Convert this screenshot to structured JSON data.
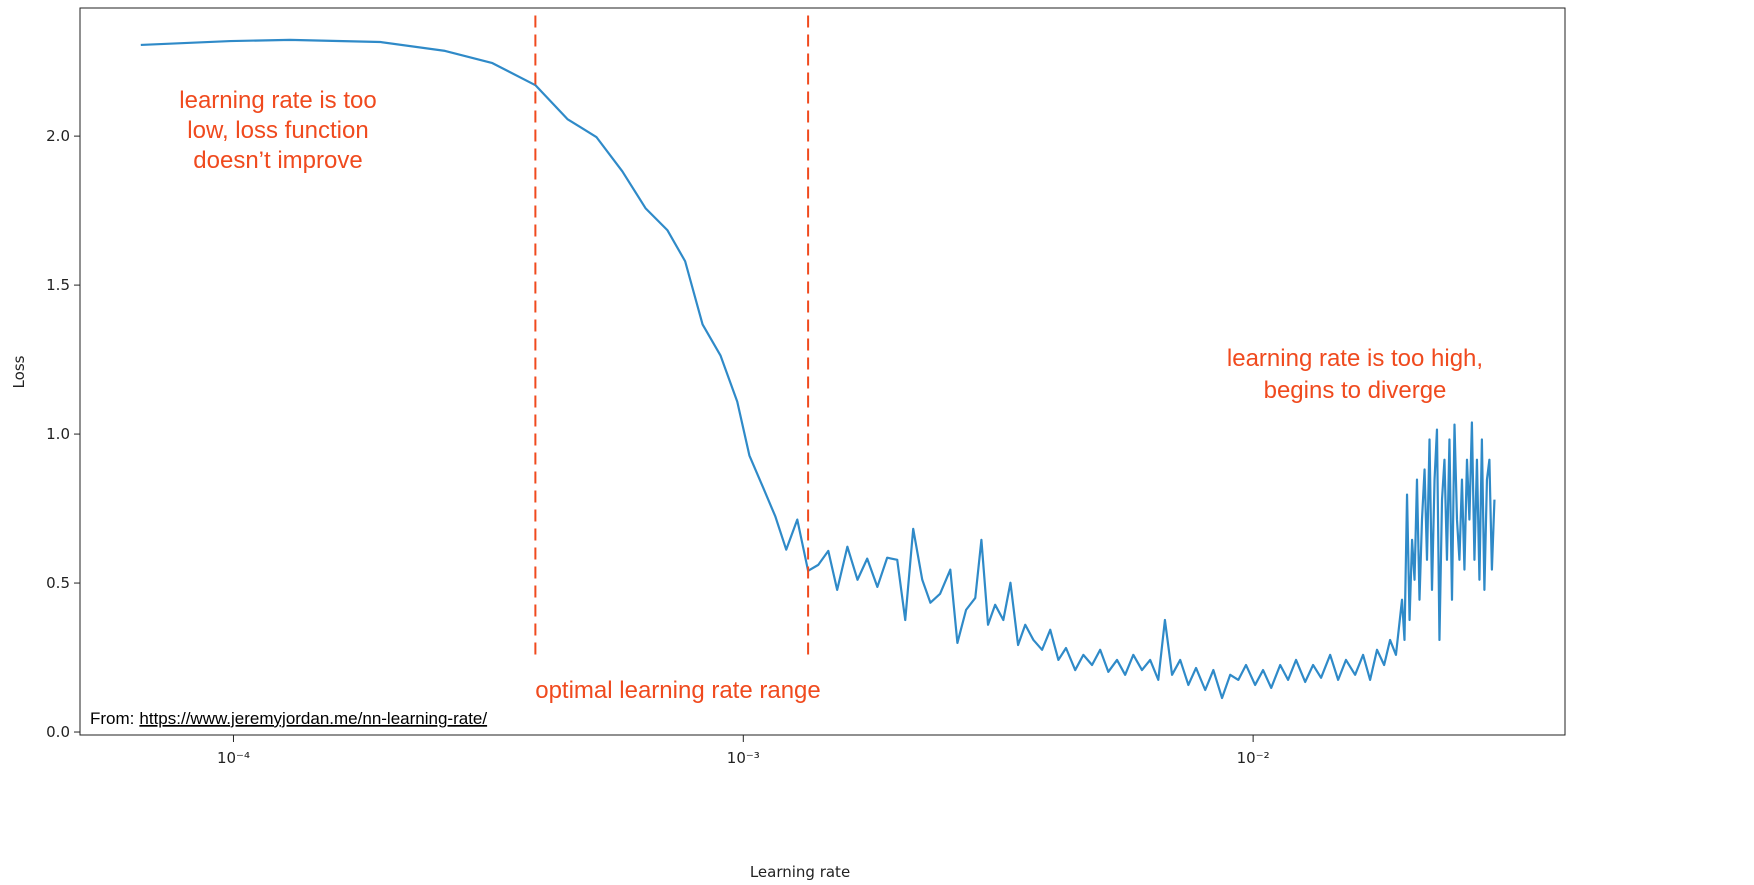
{
  "chart_data": {
    "type": "line",
    "xlabel": "Learning rate",
    "ylabel": "Loss",
    "xscale": "log",
    "xlim": [
      5e-05,
      0.0409
    ],
    "ylim": [
      -0.01,
      2.43
    ],
    "xticks": [
      {
        "value": 0.0001,
        "label": "10⁻⁴"
      },
      {
        "value": 0.001,
        "label": "10⁻³"
      },
      {
        "value": 0.01,
        "label": "10⁻²"
      }
    ],
    "yticks": [
      {
        "value": 0,
        "label": "0.0"
      },
      0.5,
      {
        "value": 1,
        "label": "1.0"
      },
      1.5,
      {
        "value": 2,
        "label": "2.0"
      }
    ],
    "x": [
      6.58e-05,
      9.87e-05,
      0.000129,
      0.000194,
      0.00026,
      0.000322,
      0.000391,
      0.000452,
      0.000515,
      0.000579,
      0.000643,
      0.00071,
      0.000769,
      0.000832,
      0.000902,
      0.000973,
      0.001028,
      0.001094,
      0.001156,
      0.001214,
      0.001276,
      0.00134,
      0.001403,
      0.001468,
      0.001528,
      0.0016,
      0.001675,
      0.00175,
      0.001832,
      0.001915,
      0.002004,
      0.002078,
      0.002154,
      0.002244,
      0.002328,
      0.002432,
      0.002547,
      0.00263,
      0.002735,
      0.002851,
      0.002931,
      0.00302,
      0.003119,
      0.003236,
      0.003342,
      0.003459,
      0.003573,
      0.003707,
      0.003855,
      0.004,
      0.00415,
      0.004295,
      0.004477,
      0.004645,
      0.004831,
      0.005012,
      0.0052,
      0.005408,
      0.00561,
      0.005821,
      0.006053,
      0.006281,
      0.006516,
      0.006714,
      0.006934,
      0.007194,
      0.007464,
      0.007727,
      0.008054,
      0.008356,
      0.00869,
      0.009016,
      0.009354,
      0.009683,
      0.01009,
      0.01046,
      0.01085,
      0.0113,
      0.01171,
      0.01214,
      0.01265,
      0.01311,
      0.01359,
      0.01416,
      0.01468,
      0.01521,
      0.01585,
      0.01643,
      0.01696,
      0.0175,
      0.01807,
      0.01856,
      0.01906,
      0.01959,
      0.01981,
      0.02004,
      0.02027,
      0.0205,
      0.02073,
      0.02096,
      0.0212,
      0.02144,
      0.02169,
      0.02193,
      0.02218,
      0.02243,
      0.02269,
      0.02294,
      0.0232,
      0.02347,
      0.02373,
      0.024,
      0.02427,
      0.02455,
      0.02483,
      0.02511,
      0.02539,
      0.02568,
      0.02597,
      0.02627,
      0.02656,
      0.02686,
      0.02717,
      0.02748,
      0.02779,
      0.0281,
      0.02842,
      0.02875,
      0.02907,
      0.0294,
      0.02974
    ],
    "series": [
      {
        "color": "#2f8ac8",
        "values": [
          2.306,
          2.319,
          2.323,
          2.316,
          2.286,
          2.245,
          2.171,
          2.057,
          1.997,
          1.882,
          1.758,
          1.684,
          1.58,
          1.368,
          1.264,
          1.109,
          0.928,
          0.82,
          0.723,
          0.612,
          0.713,
          0.541,
          0.561,
          0.608,
          0.477,
          0.622,
          0.511,
          0.582,
          0.487,
          0.585,
          0.578,
          0.376,
          0.682,
          0.511,
          0.434,
          0.464,
          0.545,
          0.299,
          0.41,
          0.45,
          0.645,
          0.36,
          0.427,
          0.376,
          0.501,
          0.292,
          0.36,
          0.309,
          0.276,
          0.343,
          0.242,
          0.282,
          0.208,
          0.259,
          0.225,
          0.276,
          0.202,
          0.242,
          0.192,
          0.259,
          0.208,
          0.242,
          0.175,
          0.376,
          0.192,
          0.242,
          0.158,
          0.215,
          0.141,
          0.208,
          0.114,
          0.192,
          0.175,
          0.225,
          0.158,
          0.208,
          0.148,
          0.225,
          0.175,
          0.242,
          0.168,
          0.225,
          0.182,
          0.259,
          0.175,
          0.242,
          0.192,
          0.259,
          0.175,
          0.276,
          0.225,
          0.309,
          0.259,
          0.444,
          0.309,
          0.797,
          0.376,
          0.645,
          0.511,
          0.847,
          0.444,
          0.713,
          0.881,
          0.578,
          0.982,
          0.477,
          0.847,
          1.015,
          0.309,
          0.78,
          0.914,
          0.578,
          0.982,
          0.444,
          1.032,
          0.713,
          0.578,
          0.847,
          0.545,
          0.914,
          0.713,
          1.039,
          0.578,
          0.914,
          0.511,
          0.982,
          0.477,
          0.847,
          0.914,
          0.545,
          0.78
        ]
      }
    ],
    "vlines": [
      {
        "x": 0.000391,
        "ymin": 0.26,
        "ymax": 2.41,
        "color": "#f04a1e"
      },
      {
        "x": 0.00134,
        "ymin": 0.26,
        "ymax": 2.41,
        "color": "#f04a1e"
      }
    ],
    "annotation_color": "#f04a1e",
    "annotations": [
      {
        "lines": [
          "learning rate is too",
          "low, loss function",
          "doesn’t improve"
        ]
      },
      {
        "lines": [
          "learning rate is too high,",
          "begins to diverge"
        ]
      },
      {
        "lines": [
          "optimal learning rate range"
        ]
      }
    ],
    "source": {
      "prefix": "From:",
      "url": "https://www.jeremyjordan.me/nn-learning-rate/"
    }
  }
}
